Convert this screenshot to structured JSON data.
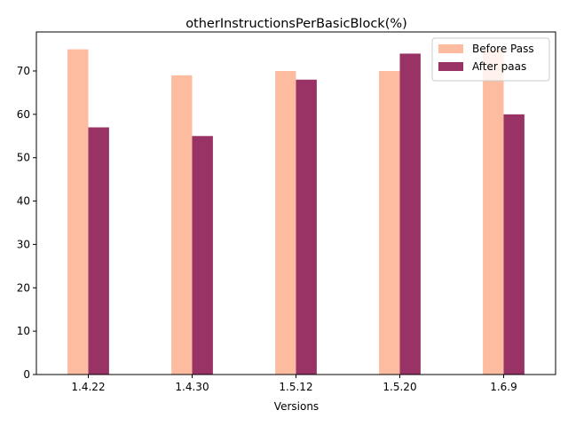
{
  "chart_data": {
    "type": "bar",
    "title": "otherInstructionsPerBasicBlock(%)",
    "xlabel": "Versions",
    "ylabel": "",
    "categories": [
      "1.4.22",
      "1.4.30",
      "1.5.12",
      "1.5.20",
      "1.6.9"
    ],
    "series": [
      {
        "name": "Before Pass",
        "color": "#fdbba0",
        "values": [
          75,
          69,
          70,
          70,
          75
        ]
      },
      {
        "name": "After paas",
        "color": "#993366",
        "values": [
          57,
          55,
          68,
          74,
          60
        ]
      }
    ],
    "ylim": [
      0,
      79
    ],
    "yticks": [
      0,
      10,
      20,
      30,
      40,
      50,
      60,
      70
    ],
    "grid": false,
    "legend_position": "top-right"
  }
}
